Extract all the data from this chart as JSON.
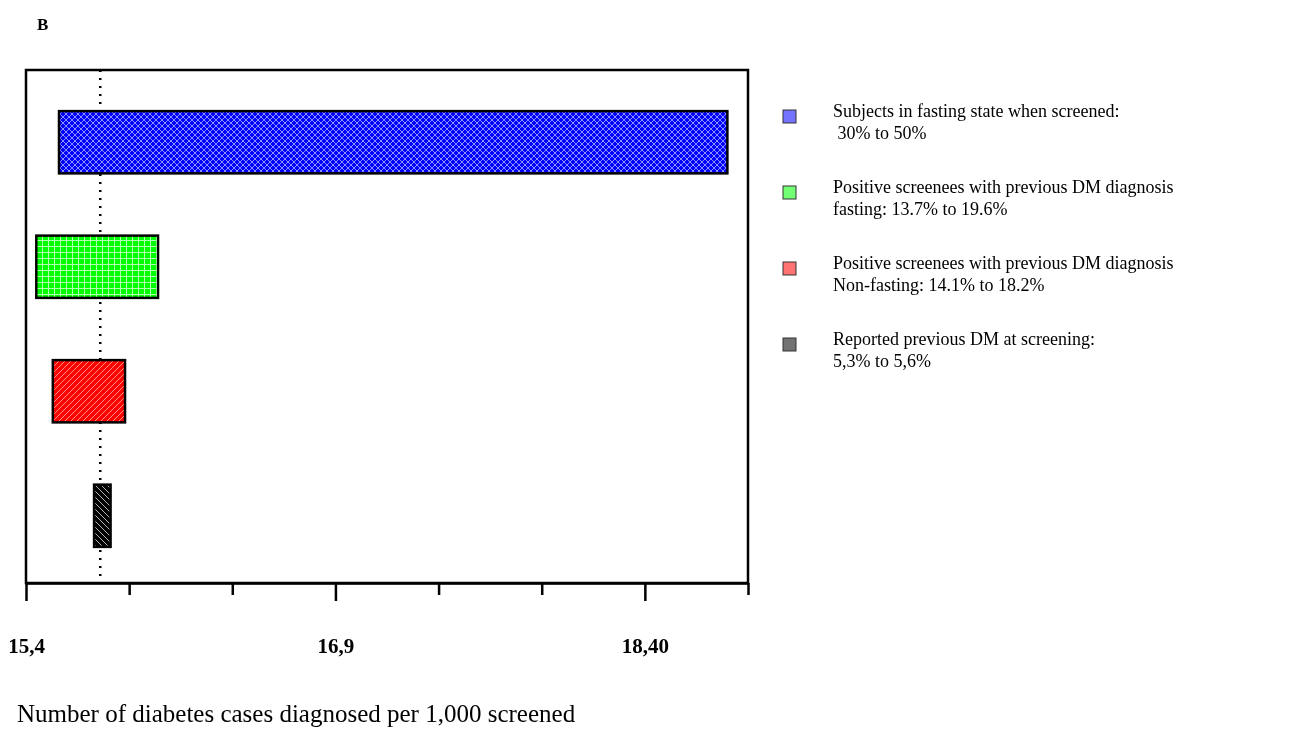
{
  "chart_data": {
    "type": "bar",
    "orientation": "horizontal",
    "title": "B",
    "xlabel": "Number of diabetes cases diagnosed per 1,000 screened",
    "categories": [
      null,
      null,
      null,
      null
    ],
    "series": [
      {
        "name": "Subjects in fasting state when screened:\n 30% to 50%",
        "color": "#0000ff",
        "values": [
          3.24,
          null,
          null,
          null
        ],
        "base": [
          15.56,
          null,
          null,
          null
        ]
      },
      {
        "name": "Positive screenees with previous DM diagnosis\nfasting: 13.7% to 19.6%",
        "color": "#00ff00",
        "values": [
          null,
          0.59,
          null,
          null
        ],
        "base": [
          null,
          15.45,
          null,
          null
        ]
      },
      {
        "name": "Positive screenees with previous DM diagnosis\nNon-fasting: 14.1% to 18.2%",
        "color": "#ff0000",
        "values": [
          null,
          null,
          0.35,
          null
        ],
        "base": [
          null,
          null,
          15.53,
          null
        ]
      },
      {
        "name": "Reported previous DM at screening:\n5,3% to 5,6%",
        "color": "#000000",
        "values": [
          null,
          null,
          null,
          0.08
        ],
        "base": [
          null,
          null,
          null,
          15.73
        ]
      }
    ],
    "xlim": [
      15.4,
      18.9
    ],
    "xticks": [
      {
        "value": 15.4,
        "label": "15,4"
      },
      {
        "value": 15.9,
        "label": null
      },
      {
        "value": 16.4,
        "label": null
      },
      {
        "value": 16.9,
        "label": "16,9"
      },
      {
        "value": 17.4,
        "label": null
      },
      {
        "value": 17.9,
        "label": null
      },
      {
        "value": 18.4,
        "label": "18,40"
      },
      {
        "value": 18.9,
        "label": null
      }
    ],
    "ref_lines": [
      {
        "axis": "x",
        "value": 15.76,
        "line_style": "dotted"
      }
    ],
    "grid": false,
    "legend": "right"
  }
}
